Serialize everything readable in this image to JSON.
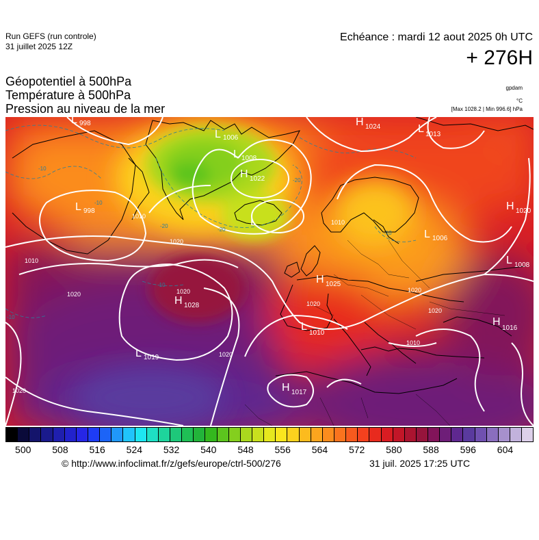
{
  "header": {
    "run_name": "Run GEFS (run controle)",
    "run_date": "31 juillet 2025 12Z",
    "echeance": "Echéance : mardi 12 aout 2025 0h UTC",
    "horizon": "+ 276H"
  },
  "titles": {
    "line1": "Géopotentiel à 500hPa",
    "line2": "Température à 500hPa",
    "line3": "Pression au niveau de la mer"
  },
  "units": {
    "gpdam": "gpdam",
    "celsius": "°C",
    "maxmin": "[Max 1028.2 | Min 996.6] hPa"
  },
  "pressure_centers": [
    {
      "type": "L",
      "value": "998"
    },
    {
      "type": "L",
      "value": "1006"
    },
    {
      "type": "L",
      "value": "1008"
    },
    {
      "type": "H",
      "value": "1024"
    },
    {
      "type": "L",
      "value": "1013"
    },
    {
      "type": "H",
      "value": "1020"
    },
    {
      "type": "L",
      "value": "998"
    },
    {
      "type": "H",
      "value": "1022"
    },
    {
      "type": "L",
      "value": ""
    },
    {
      "type": "L",
      "value": "1006"
    },
    {
      "type": "L",
      "value": "1008"
    },
    {
      "type": "H",
      "value": "1025"
    },
    {
      "type": "H",
      "value": "1028"
    },
    {
      "type": "L",
      "value": "1010"
    },
    {
      "type": "H",
      "value": "1016"
    },
    {
      "type": "L",
      "value": "1019"
    },
    {
      "type": "H",
      "value": "1017"
    }
  ],
  "isobar_labels": [
    "1020",
    "1020",
    "1020",
    "1020",
    "1020",
    "1020",
    "1010",
    "1010",
    "1010",
    "1010",
    "1020",
    "1020"
  ],
  "isotherm_labels": [
    "-10",
    "-10",
    "-10",
    "-20",
    "-20",
    "-20",
    "-10",
    "-10"
  ],
  "colorbar": {
    "colors": [
      "#000000",
      "#0a0a3a",
      "#14146b",
      "#1a1a8c",
      "#1f1fae",
      "#2222cc",
      "#2626e6",
      "#1e3cf5",
      "#1c64f7",
      "#2098fa",
      "#20c4fb",
      "#1ee6f0",
      "#1ee0c4",
      "#1ed49c",
      "#1ec87a",
      "#1fbf55",
      "#22b43a",
      "#34b81e",
      "#5cc41e",
      "#84cf1e",
      "#aad81e",
      "#c8e01e",
      "#e6e81e",
      "#fae61e",
      "#fcd21e",
      "#fcbb1e",
      "#fca51e",
      "#fb8c1e",
      "#fa731e",
      "#f75a1e",
      "#f4411e",
      "#e82a1e",
      "#d81c22",
      "#c21628",
      "#ab1430",
      "#96143c",
      "#82145a",
      "#6e1e78",
      "#5f2890",
      "#5a3a9e",
      "#7050b0",
      "#8a6ebe",
      "#a690cc",
      "#c2b2dc",
      "#ddd0ea"
    ],
    "tick_labels": [
      "500",
      "508",
      "516",
      "524",
      "532",
      "540",
      "548",
      "556",
      "564",
      "572",
      "580",
      "588",
      "596",
      "604"
    ]
  },
  "footer": {
    "copyright": "© http://www.infoclimat.fr/z/gefs/europe/ctrl-500/276",
    "generated": "31 juil. 2025 17:25 UTC"
  }
}
